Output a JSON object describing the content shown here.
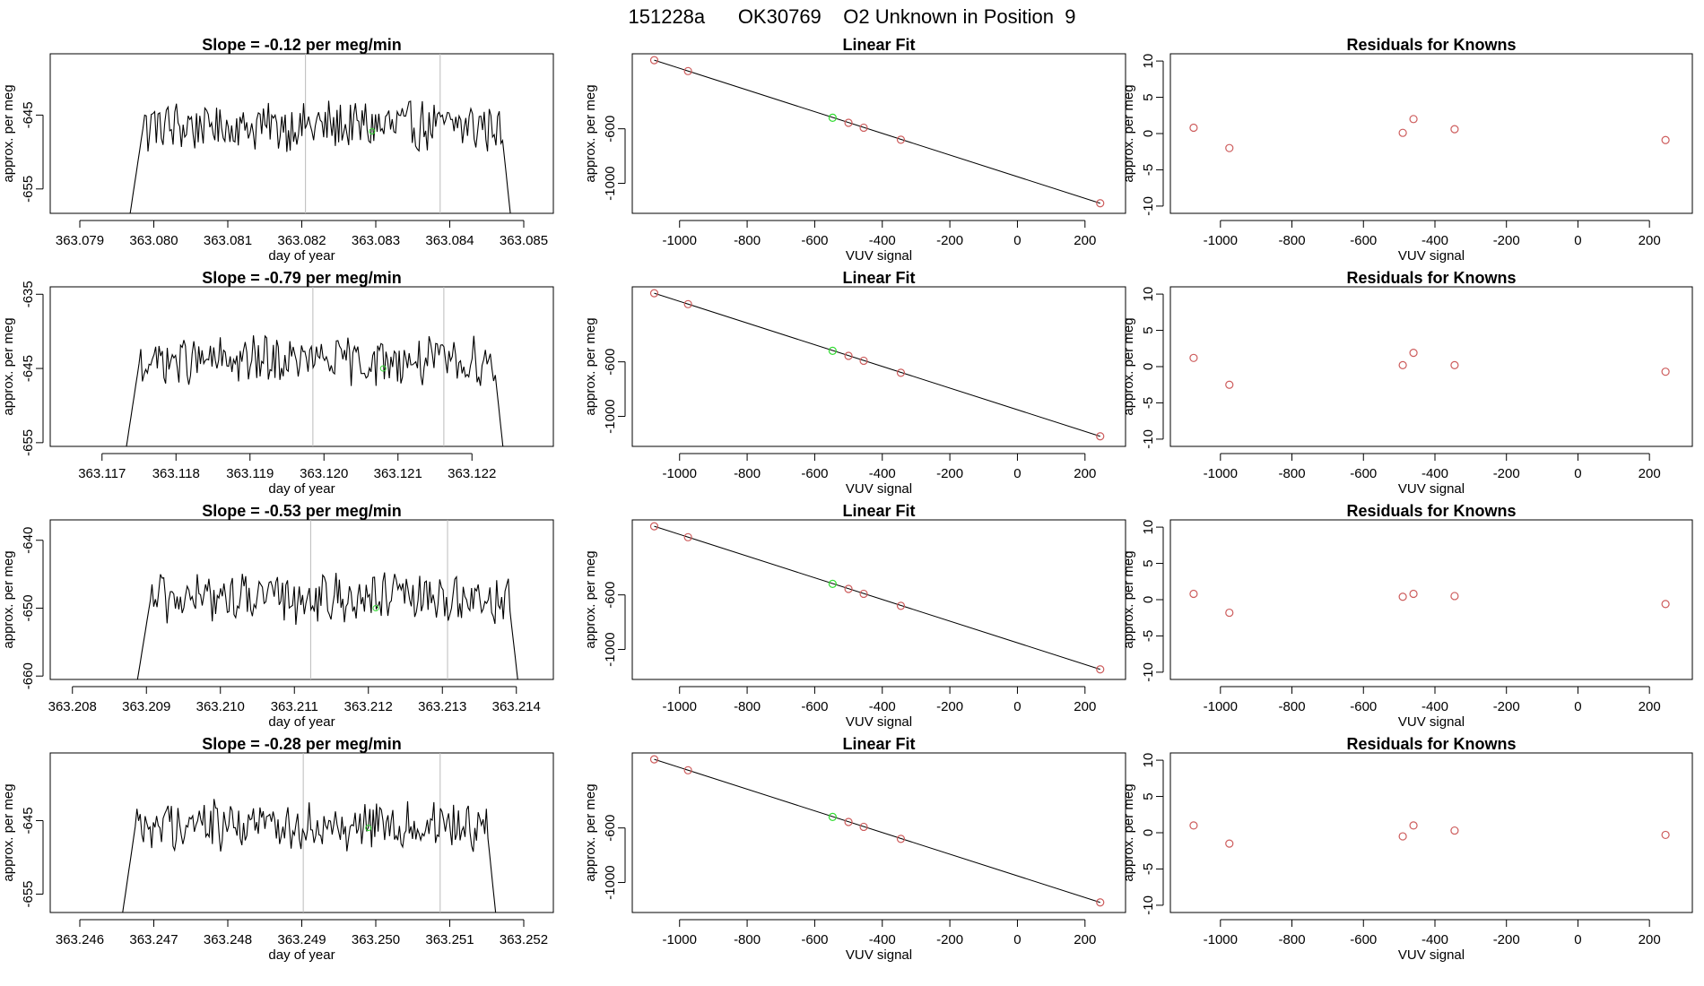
{
  "page": {
    "title": "151228a      OK30769    O2 Unknown in Position  9"
  },
  "colors": {
    "trace": "#000000",
    "known_point": "#cd5c5c",
    "unknown_point": "#33dd33",
    "marker_line": "#bbbbbb",
    "axis": "#000000"
  },
  "chart_data": [
    {
      "type": "line",
      "row": 0,
      "col": 0,
      "title": "Slope =  -0.12  per meg/min",
      "xlabel": "day of year",
      "ylabel": "approx. per meg",
      "xlim": [
        363.0786,
        363.0854
      ],
      "ylim": [
        -658.3,
        -636.7
      ],
      "xticks": [
        363.079,
        363.08,
        363.081,
        363.082,
        363.083,
        363.084,
        363.085
      ],
      "xtick_labels": [
        "363.079",
        "363.080",
        "363.081",
        "363.082",
        "363.083",
        "363.084",
        "363.085"
      ],
      "yticks": [
        -645,
        -655
      ],
      "ytick_labels": [
        "-645",
        "-655"
      ],
      "vlines": [
        363.08205,
        363.08387
      ],
      "start": 363.07965,
      "end": 363.08485,
      "mean": -646.5,
      "amp": 3.0,
      "unknown_point": {
        "x": 363.08295,
        "y": -647.2
      }
    },
    {
      "type": "scatter",
      "row": 0,
      "col": 1,
      "title": "Linear Fit",
      "xlabel": "VUV signal",
      "ylabel": "approx. per meg",
      "xlim": [
        -1140,
        320
      ],
      "ylim": [
        -1220,
        -50
      ],
      "xticks": [
        -1000,
        -800,
        -600,
        -400,
        -200,
        0,
        200
      ],
      "xtick_labels": [
        "-1000",
        "-800",
        "-600",
        "-400",
        "-200",
        "0",
        "200"
      ],
      "yticks": [
        -600,
        -1000
      ],
      "ytick_labels": [
        "-600",
        "-1000"
      ],
      "fit_line": [
        [
          -1075,
          -97
        ],
        [
          245,
          -1146
        ]
      ],
      "known_points": [
        [
          -1075,
          -97
        ],
        [
          -975,
          -177
        ],
        [
          -500,
          -556
        ],
        [
          -455,
          -592
        ],
        [
          -345,
          -680
        ],
        [
          245,
          -1146
        ]
      ],
      "unknown_point": {
        "x": -547,
        "y": -519
      }
    },
    {
      "type": "scatter",
      "row": 0,
      "col": 2,
      "title": "Residuals for Knowns",
      "xlabel": "VUV signal",
      "ylabel": "approx. per meg",
      "xlim": [
        -1140,
        320
      ],
      "ylim": [
        -11,
        11
      ],
      "xticks": [
        -1000,
        -800,
        -600,
        -400,
        -200,
        0,
        200
      ],
      "xtick_labels": [
        "-1000",
        "-800",
        "-600",
        "-400",
        "-200",
        "0",
        "200"
      ],
      "yticks": [
        10,
        5,
        0,
        -5,
        -10
      ],
      "ytick_labels": [
        "10",
        "5",
        "0",
        "-5",
        "-10"
      ],
      "known_points": [
        [
          -1075,
          0.8
        ],
        [
          -975,
          -2.0
        ],
        [
          -490,
          0.1
        ],
        [
          -460,
          2.0
        ],
        [
          -345,
          0.6
        ],
        [
          245,
          -0.9
        ]
      ]
    },
    {
      "type": "line",
      "row": 1,
      "col": 0,
      "title": "Slope =  -0.79  per meg/min",
      "xlabel": "day of year",
      "ylabel": "approx. per meg",
      "xlim": [
        363.1163,
        363.1231
      ],
      "ylim": [
        -655.5,
        -634.0
      ],
      "xticks": [
        363.117,
        363.118,
        363.119,
        363.12,
        363.121,
        363.122
      ],
      "xtick_labels": [
        "363.117",
        "363.118",
        "363.119",
        "363.120",
        "363.121",
        "363.122"
      ],
      "yticks": [
        -635,
        -645,
        -655
      ],
      "ytick_labels": [
        "-635",
        "-645",
        "-655"
      ],
      "vlines": [
        363.11985,
        363.12162
      ],
      "start": 363.1173,
      "end": 363.12245,
      "mean": -644.0,
      "amp": 2.8,
      "unknown_point": {
        "x": 363.1208,
        "y": -645.0
      }
    },
    {
      "type": "scatter",
      "row": 1,
      "col": 1,
      "title": "Linear Fit",
      "xlabel": "VUV signal",
      "ylabel": "approx. per meg",
      "xlim": [
        -1140,
        320
      ],
      "ylim": [
        -1220,
        -50
      ],
      "xticks": [
        -1000,
        -800,
        -600,
        -400,
        -200,
        0,
        200
      ],
      "xtick_labels": [
        "-1000",
        "-800",
        "-600",
        "-400",
        "-200",
        "0",
        "200"
      ],
      "yticks": [
        -600,
        -1000
      ],
      "ytick_labels": [
        "-600",
        "-1000"
      ],
      "fit_line": [
        [
          -1075,
          -97
        ],
        [
          245,
          -1146
        ]
      ],
      "known_points": [
        [
          -1075,
          -97
        ],
        [
          -975,
          -177
        ],
        [
          -500,
          -556
        ],
        [
          -455,
          -592
        ],
        [
          -345,
          -680
        ],
        [
          245,
          -1146
        ]
      ],
      "unknown_point": {
        "x": -547,
        "y": -519
      }
    },
    {
      "type": "scatter",
      "row": 1,
      "col": 2,
      "title": "Residuals for Knowns",
      "xlabel": "VUV signal",
      "ylabel": "approx. per meg",
      "xlim": [
        -1140,
        320
      ],
      "ylim": [
        -11,
        11
      ],
      "xticks": [
        -1000,
        -800,
        -600,
        -400,
        -200,
        0,
        200
      ],
      "xtick_labels": [
        "-1000",
        "-800",
        "-600",
        "-400",
        "-200",
        "0",
        "200"
      ],
      "yticks": [
        10,
        5,
        0,
        -5,
        -10
      ],
      "ytick_labels": [
        "10",
        "5",
        "0",
        "-5",
        "-10"
      ],
      "known_points": [
        [
          -1075,
          1.2
        ],
        [
          -975,
          -2.5
        ],
        [
          -490,
          0.2
        ],
        [
          -460,
          1.9
        ],
        [
          -345,
          0.2
        ],
        [
          245,
          -0.7
        ]
      ]
    },
    {
      "type": "line",
      "row": 2,
      "col": 0,
      "title": "Slope =  -0.53  per meg/min",
      "xlabel": "day of year",
      "ylabel": "approx. per meg",
      "xlim": [
        363.2077,
        363.2145
      ],
      "ylim": [
        -660.5,
        -637.0
      ],
      "xticks": [
        363.208,
        363.209,
        363.21,
        363.211,
        363.212,
        363.213,
        363.214
      ],
      "xtick_labels": [
        "363.208",
        "363.209",
        "363.210",
        "363.211",
        "363.212",
        "363.213",
        "363.214"
      ],
      "yticks": [
        -640,
        -650,
        -660
      ],
      "ytick_labels": [
        "-640",
        "-650",
        "-660"
      ],
      "vlines": [
        363.21122,
        363.21307
      ],
      "start": 363.20885,
      "end": 363.21405,
      "mean": -648.5,
      "amp": 3.2,
      "unknown_point": {
        "x": 363.2121,
        "y": -650.0
      }
    },
    {
      "type": "scatter",
      "row": 2,
      "col": 1,
      "title": "Linear Fit",
      "xlabel": "VUV signal",
      "ylabel": "approx. per meg",
      "xlim": [
        -1140,
        320
      ],
      "ylim": [
        -1220,
        -50
      ],
      "xticks": [
        -1000,
        -800,
        -600,
        -400,
        -200,
        0,
        200
      ],
      "xtick_labels": [
        "-1000",
        "-800",
        "-600",
        "-400",
        "-200",
        "0",
        "200"
      ],
      "yticks": [
        -600,
        -1000
      ],
      "ytick_labels": [
        "-600",
        "-1000"
      ],
      "fit_line": [
        [
          -1075,
          -97
        ],
        [
          245,
          -1146
        ]
      ],
      "known_points": [
        [
          -1075,
          -97
        ],
        [
          -975,
          -177
        ],
        [
          -500,
          -556
        ],
        [
          -455,
          -592
        ],
        [
          -345,
          -680
        ],
        [
          245,
          -1146
        ]
      ],
      "unknown_point": {
        "x": -547,
        "y": -519
      }
    },
    {
      "type": "scatter",
      "row": 2,
      "col": 2,
      "title": "Residuals for Knowns",
      "xlabel": "VUV signal",
      "ylabel": "approx. per meg",
      "xlim": [
        -1140,
        320
      ],
      "ylim": [
        -11,
        11
      ],
      "xticks": [
        -1000,
        -800,
        -600,
        -400,
        -200,
        0,
        200
      ],
      "xtick_labels": [
        "-1000",
        "-800",
        "-600",
        "-400",
        "-200",
        "0",
        "200"
      ],
      "yticks": [
        10,
        5,
        0,
        -5,
        -10
      ],
      "ytick_labels": [
        "10",
        "5",
        "0",
        "-5",
        "-10"
      ],
      "known_points": [
        [
          -1075,
          0.8
        ],
        [
          -975,
          -1.8
        ],
        [
          -490,
          0.4
        ],
        [
          -460,
          0.8
        ],
        [
          -345,
          0.5
        ],
        [
          245,
          -0.6
        ]
      ]
    },
    {
      "type": "line",
      "row": 3,
      "col": 0,
      "title": "Slope =  -0.28  per meg/min",
      "xlabel": "day of year",
      "ylabel": "approx. per meg",
      "xlim": [
        363.2456,
        363.2524
      ],
      "ylim": [
        -657.5,
        -635.8
      ],
      "xticks": [
        363.246,
        363.247,
        363.248,
        363.249,
        363.25,
        363.251,
        363.252
      ],
      "xtick_labels": [
        "363.246",
        "363.247",
        "363.248",
        "363.249",
        "363.250",
        "363.251",
        "363.252"
      ],
      "yticks": [
        -645,
        -655
      ],
      "ytick_labels": [
        "-645",
        "-655"
      ],
      "vlines": [
        363.24902,
        363.25087
      ],
      "start": 363.24655,
      "end": 363.25165,
      "mean": -645.5,
      "amp": 3.0,
      "unknown_point": {
        "x": 363.2499,
        "y": -646.0
      }
    },
    {
      "type": "scatter",
      "row": 3,
      "col": 1,
      "title": "Linear Fit",
      "xlabel": "VUV signal",
      "ylabel": "approx. per meg",
      "xlim": [
        -1140,
        320
      ],
      "ylim": [
        -1220,
        -50
      ],
      "xticks": [
        -1000,
        -800,
        -600,
        -400,
        -200,
        0,
        200
      ],
      "xtick_labels": [
        "-1000",
        "-800",
        "-600",
        "-400",
        "-200",
        "0",
        "200"
      ],
      "yticks": [
        -600,
        -1000
      ],
      "ytick_labels": [
        "-600",
        "-1000"
      ],
      "fit_line": [
        [
          -1075,
          -97
        ],
        [
          245,
          -1146
        ]
      ],
      "known_points": [
        [
          -1075,
          -97
        ],
        [
          -975,
          -177
        ],
        [
          -500,
          -556
        ],
        [
          -455,
          -592
        ],
        [
          -345,
          -680
        ],
        [
          245,
          -1146
        ]
      ],
      "unknown_point": {
        "x": -547,
        "y": -519
      }
    },
    {
      "type": "scatter",
      "row": 3,
      "col": 2,
      "title": "Residuals for Knowns",
      "xlabel": "VUV signal",
      "ylabel": "approx. per meg",
      "xlim": [
        -1140,
        320
      ],
      "ylim": [
        -11,
        11
      ],
      "xticks": [
        -1000,
        -800,
        -600,
        -400,
        -200,
        0,
        200
      ],
      "xtick_labels": [
        "-1000",
        "-800",
        "-600",
        "-400",
        "-200",
        "0",
        "200"
      ],
      "yticks": [
        10,
        5,
        0,
        -5,
        -10
      ],
      "ytick_labels": [
        "10",
        "5",
        "0",
        "-5",
        "-10"
      ],
      "known_points": [
        [
          -1075,
          1.0
        ],
        [
          -975,
          -1.5
        ],
        [
          -490,
          -0.5
        ],
        [
          -460,
          1.0
        ],
        [
          -345,
          0.3
        ],
        [
          245,
          -0.3
        ]
      ]
    }
  ]
}
